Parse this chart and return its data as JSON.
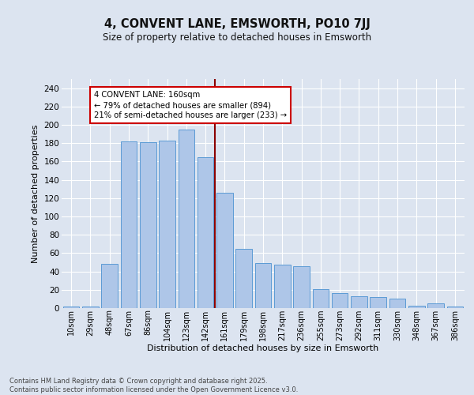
{
  "title": "4, CONVENT LANE, EMSWORTH, PO10 7JJ",
  "subtitle": "Size of property relative to detached houses in Emsworth",
  "xlabel": "Distribution of detached houses by size in Emsworth",
  "ylabel": "Number of detached properties",
  "categories": [
    "10sqm",
    "29sqm",
    "48sqm",
    "67sqm",
    "86sqm",
    "104sqm",
    "123sqm",
    "142sqm",
    "161sqm",
    "179sqm",
    "198sqm",
    "217sqm",
    "236sqm",
    "255sqm",
    "273sqm",
    "292sqm",
    "311sqm",
    "330sqm",
    "348sqm",
    "367sqm",
    "386sqm"
  ],
  "values": [
    2,
    2,
    48,
    182,
    181,
    183,
    195,
    165,
    126,
    65,
    49,
    47,
    46,
    21,
    16,
    13,
    12,
    10,
    3,
    5,
    2
  ],
  "bar_color": "#aec6e8",
  "bar_edge_color": "#5b9bd5",
  "vline_x": 8,
  "vline_color": "#8b0000",
  "annotation_text": "4 CONVENT LANE: 160sqm\n← 79% of detached houses are smaller (894)\n21% of semi-detached houses are larger (233) →",
  "annotation_box_color": "#ffffff",
  "annotation_box_edge": "#cc0000",
  "bg_color": "#dce4f0",
  "plot_bg_color": "#dce4f0",
  "grid_color": "#ffffff",
  "footer_text": "Contains HM Land Registry data © Crown copyright and database right 2025.\nContains public sector information licensed under the Open Government Licence v3.0.",
  "ylim": [
    0,
    250
  ],
  "yticks": [
    0,
    20,
    40,
    60,
    80,
    100,
    120,
    140,
    160,
    180,
    200,
    220,
    240
  ]
}
